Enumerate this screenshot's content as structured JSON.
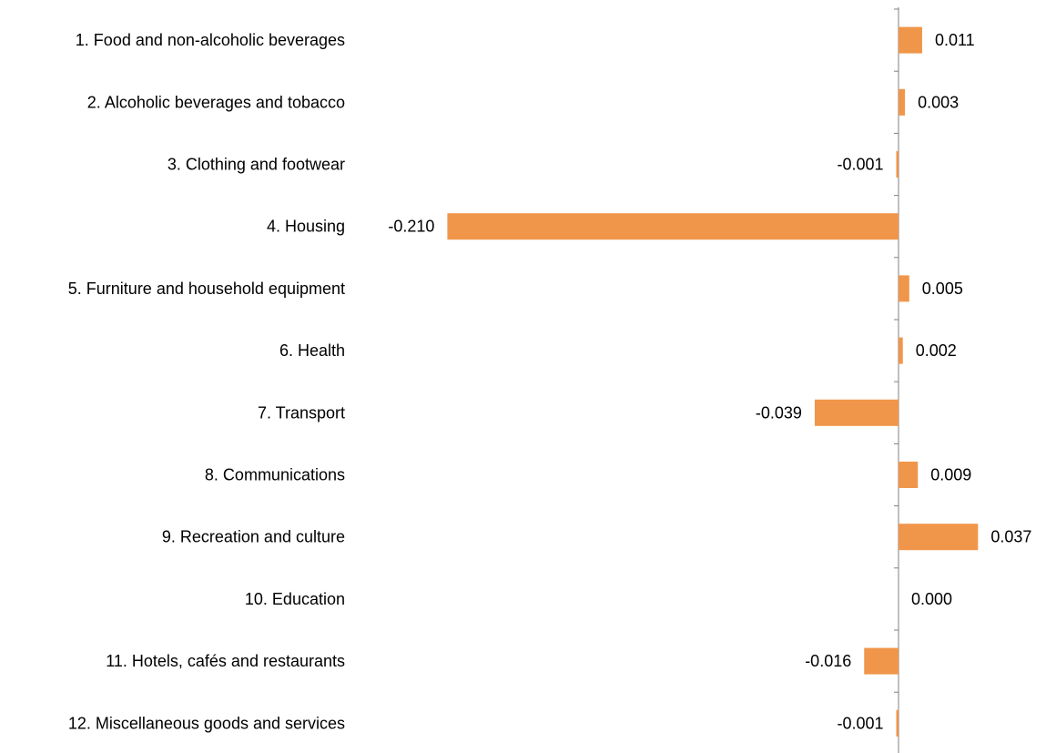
{
  "chart_data": {
    "type": "bar",
    "orientation": "horizontal",
    "categories": [
      "1. Food and non-alcoholic beverages",
      "2. Alcoholic beverages and tobacco",
      "3. Clothing and footwear",
      "4. Housing",
      "5. Furniture and household equipment",
      "6. Health",
      "7. Transport",
      "8. Communications",
      "9. Recreation and culture",
      "10. Education",
      "11. Hotels, cafés and restaurants",
      "12. Miscellaneous goods and services"
    ],
    "values": [
      0.011,
      0.003,
      -0.001,
      -0.21,
      0.005,
      0.002,
      -0.039,
      0.009,
      0.037,
      0.0,
      -0.016,
      -0.001
    ],
    "value_labels": [
      "0.011",
      "0.003",
      "-0.001",
      "-0.210",
      "0.005",
      "0.002",
      "-0.039",
      "0.009",
      "0.037",
      "0.000",
      "-0.016",
      "-0.001"
    ],
    "title": "",
    "xlabel": "",
    "ylabel": "",
    "xlim": [
      -0.21,
      0.037
    ],
    "grid": false,
    "legend": "none",
    "colors": {
      "bar": "#F0964A",
      "axis": "#808080"
    }
  }
}
